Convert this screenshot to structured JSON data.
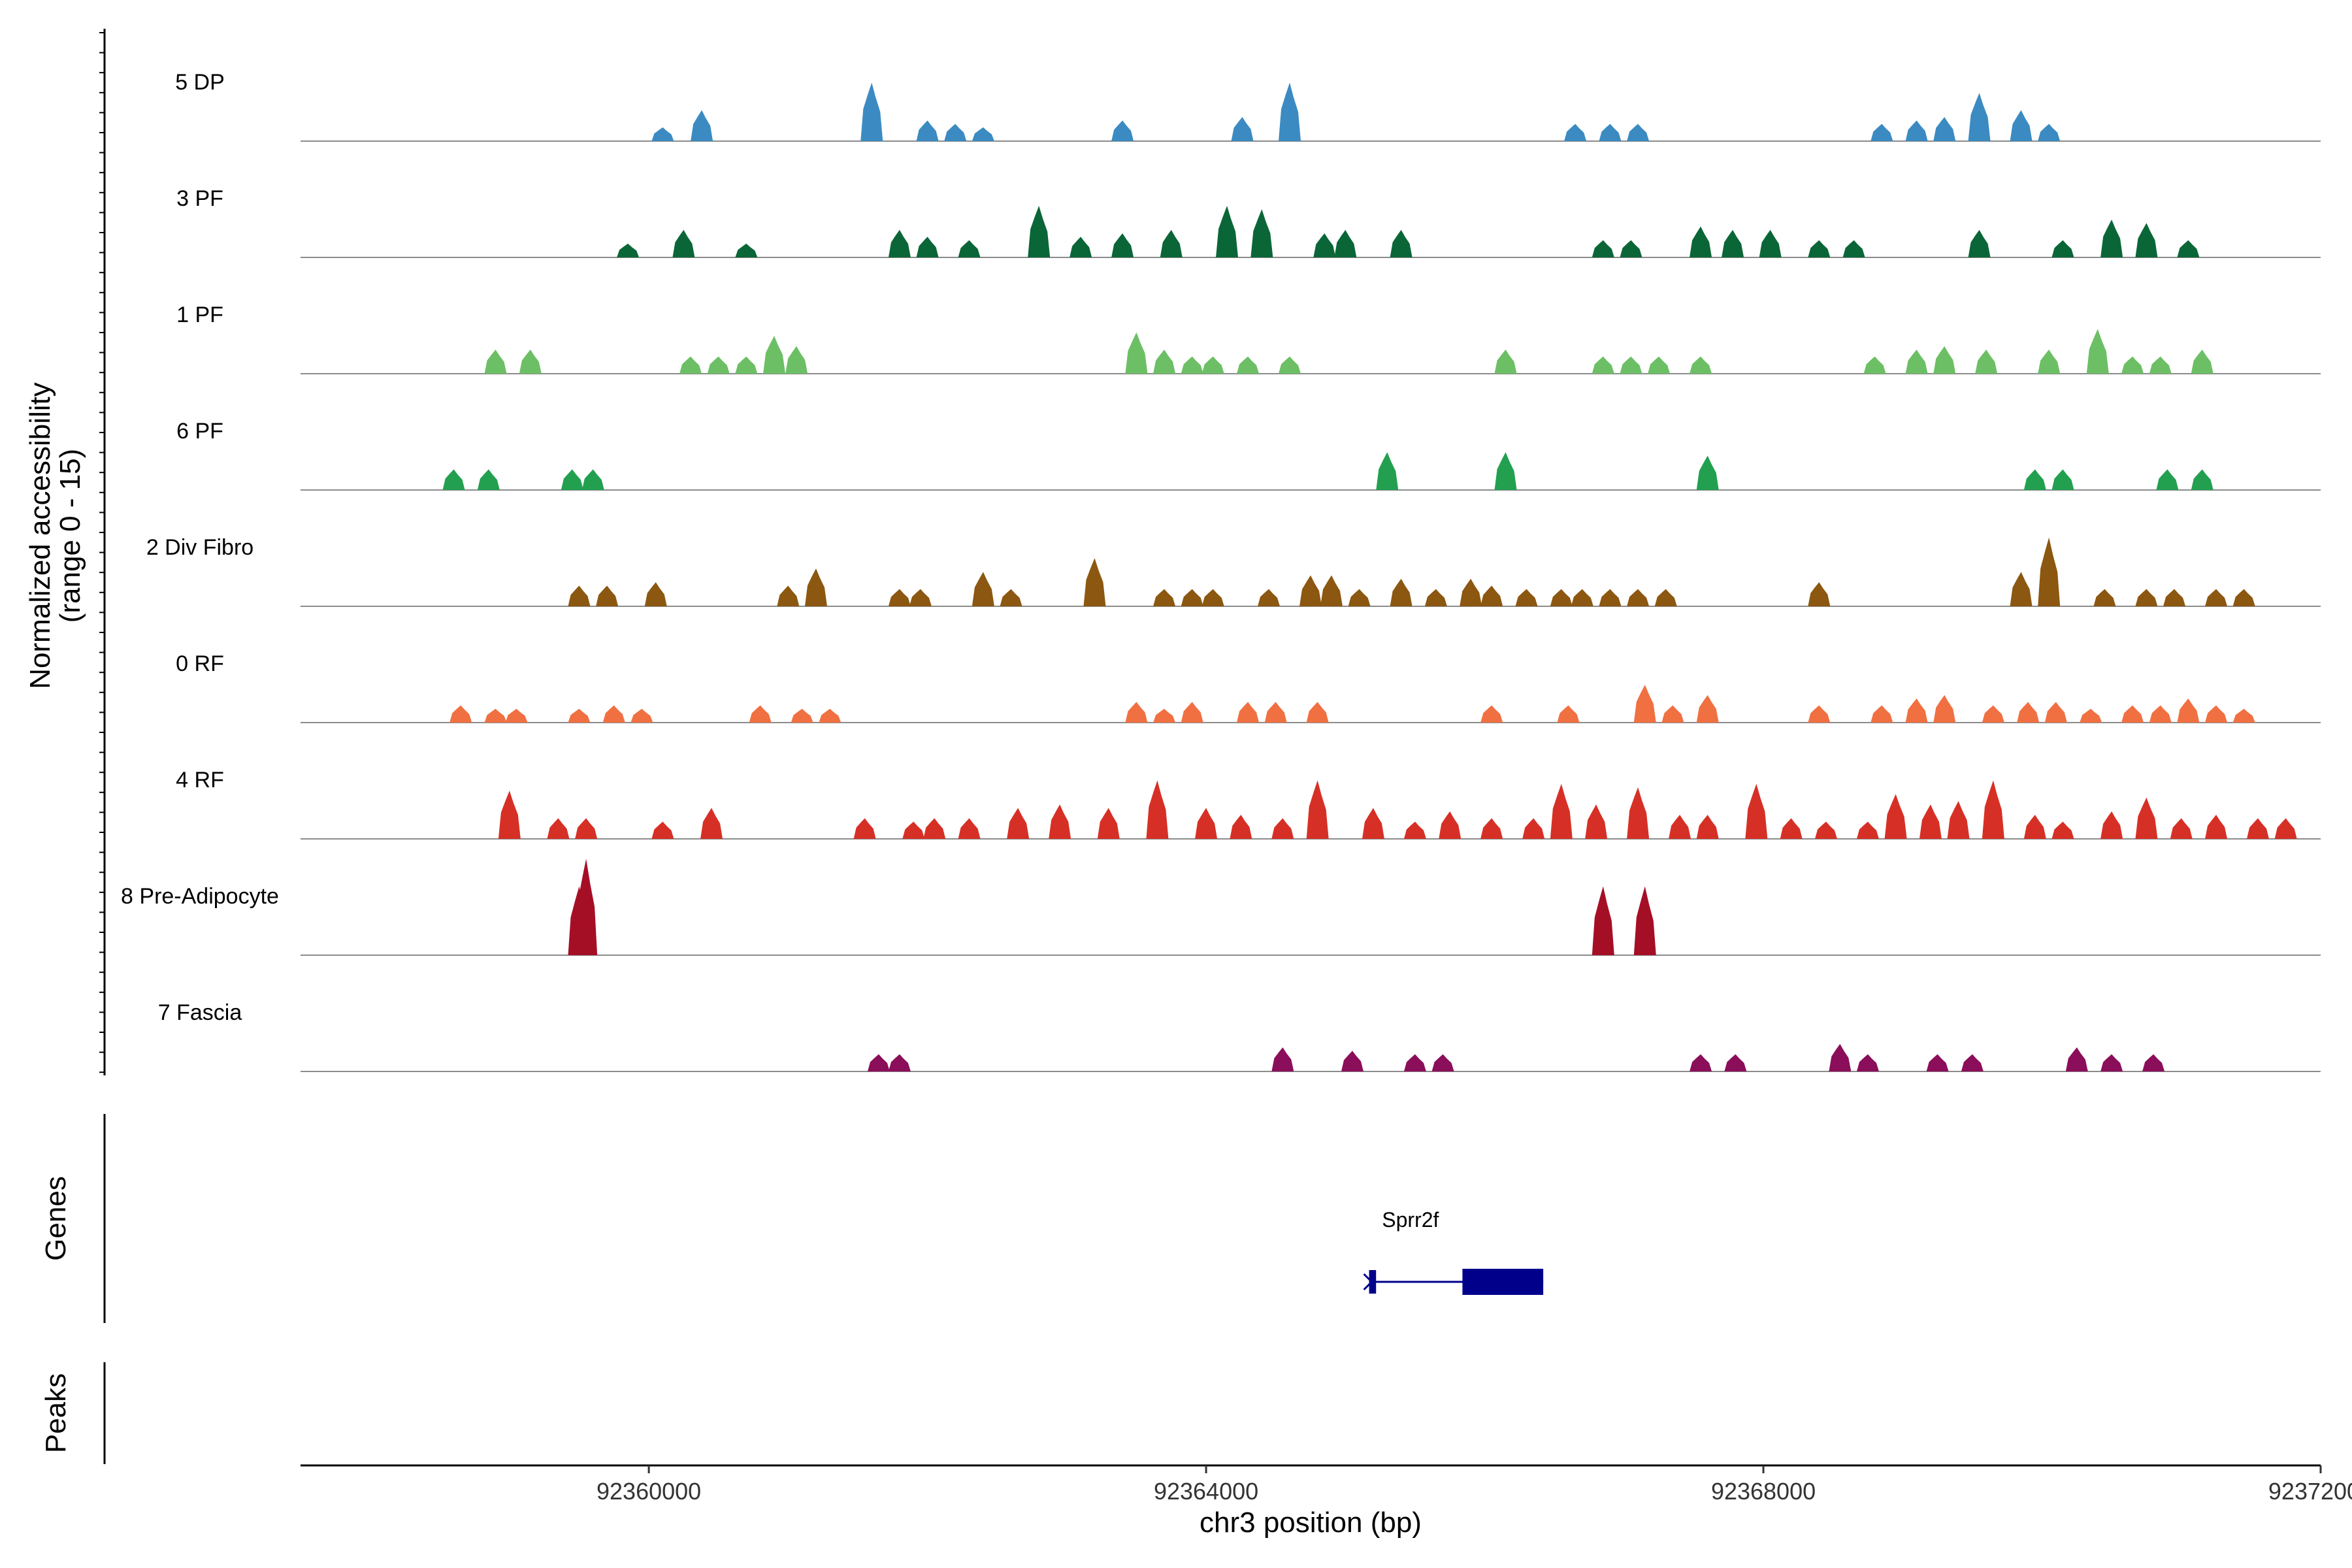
{
  "chart_data": {
    "type": "area",
    "title": "",
    "ylabel": "Normalized accessibility",
    "ylabel_sub": "(range 0 - 15)",
    "xlabel": "chr3 position (bp)",
    "xlim": [
      92357500,
      92372000
    ],
    "ylim": [
      0,
      15
    ],
    "x_ticks": [
      92360000,
      92364000,
      92368000,
      92372000
    ],
    "x_tick_labels": [
      "92360000",
      "92364000",
      "92368000",
      "92372000"
    ],
    "series": [
      {
        "name": "5 DP",
        "color": "#3b8bc2",
        "peaks": [
          [
            92360100,
            2.0
          ],
          [
            92360380,
            4.5
          ],
          [
            92361600,
            8.5
          ],
          [
            92362000,
            3.0
          ],
          [
            92362200,
            2.5
          ],
          [
            92362400,
            2.0
          ],
          [
            92363400,
            3.0
          ],
          [
            92364260,
            3.5
          ],
          [
            92364600,
            8.5
          ],
          [
            92366650,
            2.5
          ],
          [
            92366900,
            2.5
          ],
          [
            92367100,
            2.5
          ],
          [
            92368850,
            2.5
          ],
          [
            92369100,
            3.0
          ],
          [
            92369300,
            3.5
          ],
          [
            92369550,
            7.0
          ],
          [
            92369850,
            4.5
          ],
          [
            92370050,
            2.5
          ]
        ]
      },
      {
        "name": "3 PF",
        "color": "#0b6637",
        "peaks": [
          [
            92359850,
            2.0
          ],
          [
            92360250,
            4.0
          ],
          [
            92360700,
            2.0
          ],
          [
            92361800,
            4.0
          ],
          [
            92362000,
            3.0
          ],
          [
            92362300,
            2.5
          ],
          [
            92362800,
            7.5
          ],
          [
            92363100,
            3.0
          ],
          [
            92363400,
            3.5
          ],
          [
            92363750,
            4.0
          ],
          [
            92364150,
            7.5
          ],
          [
            92364400,
            7.0
          ],
          [
            92364850,
            3.5
          ],
          [
            92365000,
            4.0
          ],
          [
            92365400,
            4.0
          ],
          [
            92366850,
            2.5
          ],
          [
            92367050,
            2.5
          ],
          [
            92367550,
            4.5
          ],
          [
            92367780,
            4.0
          ],
          [
            92368050,
            4.0
          ],
          [
            92368400,
            2.5
          ],
          [
            92368650,
            2.5
          ],
          [
            92369550,
            4.0
          ],
          [
            92370150,
            2.5
          ],
          [
            92370500,
            5.5
          ],
          [
            92370750,
            5.0
          ],
          [
            92371050,
            2.5
          ]
        ]
      },
      {
        "name": "1 PF",
        "color": "#6cbf65",
        "peaks": [
          [
            92358900,
            3.5
          ],
          [
            92359150,
            3.5
          ],
          [
            92360300,
            2.5
          ],
          [
            92360500,
            2.5
          ],
          [
            92360700,
            2.5
          ],
          [
            92360900,
            5.5
          ],
          [
            92361060,
            4.0
          ],
          [
            92363500,
            6.0
          ],
          [
            92363700,
            3.5
          ],
          [
            92363900,
            2.5
          ],
          [
            92364050,
            2.5
          ],
          [
            92364300,
            2.5
          ],
          [
            92364600,
            2.5
          ],
          [
            92366150,
            3.5
          ],
          [
            92366850,
            2.5
          ],
          [
            92367050,
            2.5
          ],
          [
            92367250,
            2.5
          ],
          [
            92367550,
            2.5
          ],
          [
            92368800,
            2.5
          ],
          [
            92369100,
            3.5
          ],
          [
            92369300,
            4.0
          ],
          [
            92369600,
            3.5
          ],
          [
            92370050,
            3.5
          ],
          [
            92370400,
            6.5
          ],
          [
            92370650,
            2.5
          ],
          [
            92370850,
            2.5
          ],
          [
            92371150,
            3.5
          ]
        ]
      },
      {
        "name": "6 PF",
        "color": "#22a04f",
        "peaks": [
          [
            92358600,
            3.0
          ],
          [
            92358850,
            3.0
          ],
          [
            92359450,
            3.0
          ],
          [
            92359600,
            3.0
          ],
          [
            92365300,
            5.5
          ],
          [
            92366150,
            5.5
          ],
          [
            92367600,
            5.0
          ],
          [
            92369950,
            3.0
          ],
          [
            92370150,
            3.0
          ],
          [
            92370900,
            3.0
          ],
          [
            92371150,
            3.0
          ]
        ]
      },
      {
        "name": "2 Div Fibro",
        "color": "#8c5710",
        "peaks": [
          [
            92359500,
            3.0
          ],
          [
            92359700,
            3.0
          ],
          [
            92360050,
            3.5
          ],
          [
            92361000,
            3.0
          ],
          [
            92361200,
            5.5
          ],
          [
            92361800,
            2.5
          ],
          [
            92361950,
            2.5
          ],
          [
            92362400,
            5.0
          ],
          [
            92362600,
            2.5
          ],
          [
            92363200,
            7.0
          ],
          [
            92363700,
            2.5
          ],
          [
            92363900,
            2.5
          ],
          [
            92364050,
            2.5
          ],
          [
            92364450,
            2.5
          ],
          [
            92364750,
            4.5
          ],
          [
            92364900,
            4.5
          ],
          [
            92365100,
            2.5
          ],
          [
            92365400,
            4.0
          ],
          [
            92365650,
            2.5
          ],
          [
            92365900,
            4.0
          ],
          [
            92366050,
            3.0
          ],
          [
            92366300,
            2.5
          ],
          [
            92366550,
            2.5
          ],
          [
            92366700,
            2.5
          ],
          [
            92366900,
            2.5
          ],
          [
            92367100,
            2.5
          ],
          [
            92367300,
            2.5
          ],
          [
            92368400,
            3.5
          ],
          [
            92369850,
            5.0
          ],
          [
            92370050,
            10.0
          ],
          [
            92370450,
            2.5
          ],
          [
            92370750,
            2.5
          ],
          [
            92370950,
            2.5
          ],
          [
            92371250,
            2.5
          ],
          [
            92371450,
            2.5
          ]
        ]
      },
      {
        "name": "0 RF",
        "color": "#f07042",
        "peaks": [
          [
            92358650,
            2.5
          ],
          [
            92358900,
            2.0
          ],
          [
            92359050,
            2.0
          ],
          [
            92359500,
            2.0
          ],
          [
            92359750,
            2.5
          ],
          [
            92359950,
            2.0
          ],
          [
            92360800,
            2.5
          ],
          [
            92361100,
            2.0
          ],
          [
            92361300,
            2.0
          ],
          [
            92363500,
            3.0
          ],
          [
            92363700,
            2.0
          ],
          [
            92363900,
            3.0
          ],
          [
            92364300,
            3.0
          ],
          [
            92364500,
            3.0
          ],
          [
            92364800,
            3.0
          ],
          [
            92366050,
            2.5
          ],
          [
            92366600,
            2.5
          ],
          [
            92367150,
            5.5
          ],
          [
            92367350,
            2.5
          ],
          [
            92367600,
            4.0
          ],
          [
            92368400,
            2.5
          ],
          [
            92368850,
            2.5
          ],
          [
            92369100,
            3.5
          ],
          [
            92369300,
            4.0
          ],
          [
            92369650,
            2.5
          ],
          [
            92369900,
            3.0
          ],
          [
            92370100,
            3.0
          ],
          [
            92370350,
            2.0
          ],
          [
            92370650,
            2.5
          ],
          [
            92370850,
            2.5
          ],
          [
            92371050,
            3.5
          ],
          [
            92371250,
            2.5
          ],
          [
            92371450,
            2.0
          ]
        ]
      },
      {
        "name": "4 RF",
        "color": "#d63026",
        "peaks": [
          [
            92359000,
            7.0
          ],
          [
            92359350,
            3.0
          ],
          [
            92359550,
            3.0
          ],
          [
            92360100,
            2.5
          ],
          [
            92360450,
            4.5
          ],
          [
            92361550,
            3.0
          ],
          [
            92361900,
            2.5
          ],
          [
            92362050,
            3.0
          ],
          [
            92362300,
            3.0
          ],
          [
            92362650,
            4.5
          ],
          [
            92362950,
            5.0
          ],
          [
            92363300,
            4.5
          ],
          [
            92363650,
            8.5
          ],
          [
            92364000,
            4.5
          ],
          [
            92364250,
            3.5
          ],
          [
            92364550,
            3.0
          ],
          [
            92364800,
            8.5
          ],
          [
            92365200,
            4.5
          ],
          [
            92365500,
            2.5
          ],
          [
            92365750,
            4.0
          ],
          [
            92366050,
            3.0
          ],
          [
            92366350,
            3.0
          ],
          [
            92366550,
            8.0
          ],
          [
            92366800,
            5.0
          ],
          [
            92367100,
            7.5
          ],
          [
            92367400,
            3.5
          ],
          [
            92367600,
            3.5
          ],
          [
            92367950,
            8.0
          ],
          [
            92368200,
            3.0
          ],
          [
            92368450,
            2.5
          ],
          [
            92368750,
            2.5
          ],
          [
            92368950,
            6.5
          ],
          [
            92369200,
            5.0
          ],
          [
            92369400,
            5.5
          ],
          [
            92369650,
            8.5
          ],
          [
            92369950,
            3.5
          ],
          [
            92370150,
            2.5
          ],
          [
            92370500,
            4.0
          ],
          [
            92370750,
            6.0
          ],
          [
            92371000,
            3.0
          ],
          [
            92371250,
            3.5
          ],
          [
            92371550,
            3.0
          ],
          [
            92371750,
            3.0
          ]
        ]
      },
      {
        "name": "8 Pre-Adipocyte",
        "color": "#a50f26",
        "peaks": [
          [
            92359500,
            10.0
          ],
          [
            92359550,
            14.0
          ],
          [
            92366850,
            10.0
          ],
          [
            92367150,
            10.0
          ]
        ]
      },
      {
        "name": "7 Fascia",
        "color": "#8b0e5a",
        "peaks": [
          [
            92361650,
            2.5
          ],
          [
            92361800,
            2.5
          ],
          [
            92364550,
            3.5
          ],
          [
            92365050,
            3.0
          ],
          [
            92365500,
            2.5
          ],
          [
            92365700,
            2.5
          ],
          [
            92367550,
            2.5
          ],
          [
            92367800,
            2.5
          ],
          [
            92368550,
            4.0
          ],
          [
            92368750,
            2.5
          ],
          [
            92369250,
            2.5
          ],
          [
            92369500,
            2.5
          ],
          [
            92370250,
            3.5
          ],
          [
            92370500,
            2.5
          ],
          [
            92370800,
            2.5
          ]
        ]
      }
    ],
    "genes_track_label": "Genes",
    "peaks_track_label": "Peaks",
    "genes": [
      {
        "name": "Sprr2f",
        "start": 92365170,
        "end": 92366420,
        "strand": "-",
        "exons": [
          [
            92365170,
            92365220
          ],
          [
            92365840,
            92366420
          ]
        ],
        "color": "#00008b"
      }
    ]
  }
}
